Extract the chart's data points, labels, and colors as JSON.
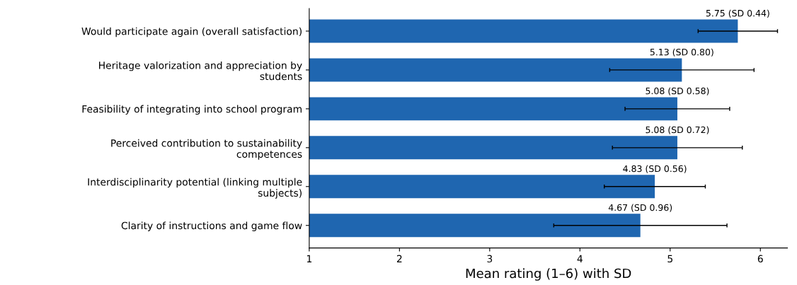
{
  "chart_data": {
    "type": "bar",
    "orientation": "horizontal",
    "xlabel": "Mean rating (1–6) with SD",
    "categories": [
      "Would participate again (overall satisfaction)",
      "Heritage valorization and appreciation by\nstudents",
      "Feasibility of integrating into school program",
      "Perceived contribution to sustainability\ncompetences",
      "Interdisciplinarity potential (linking multiple\nsubjects)",
      "Clarity of instructions and game flow"
    ],
    "values": [
      5.75,
      5.13,
      5.08,
      5.08,
      4.83,
      4.67
    ],
    "errors": [
      0.44,
      0.8,
      0.58,
      0.72,
      0.56,
      0.96
    ],
    "value_labels": [
      "5.75 (SD 0.44)",
      "5.13 (SD 0.80)",
      "5.08 (SD 0.58)",
      "5.08 (SD 0.72)",
      "4.83 (SD 0.56)",
      "4.67 (SD 0.96)"
    ],
    "color": "#1f66b0",
    "xlim": [
      1,
      6.3
    ],
    "xticks": [
      1,
      2,
      3,
      4,
      5,
      6
    ],
    "grid": false
  }
}
